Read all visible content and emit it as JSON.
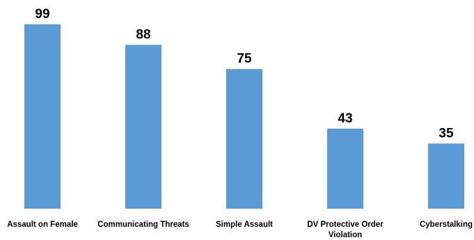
{
  "chart_data": {
    "type": "bar",
    "title": "",
    "xlabel": "",
    "ylabel": "",
    "categories": [
      [
        "Assault on Female"
      ],
      [
        "Communicating Threats"
      ],
      [
        "Simple Assault"
      ],
      [
        "DV Protective Order",
        "Violation"
      ],
      [
        "Cyberstalking"
      ]
    ],
    "values": [
      99,
      88,
      75,
      43,
      35
    ],
    "data_labels": [
      "99",
      "88",
      "75",
      "43",
      "35"
    ],
    "ylim": [
      0,
      100
    ],
    "grid": false,
    "legend": "none",
    "colors": {
      "bar": "#5B9BD5",
      "text": "#000000",
      "background": "#FFFFFF"
    }
  }
}
